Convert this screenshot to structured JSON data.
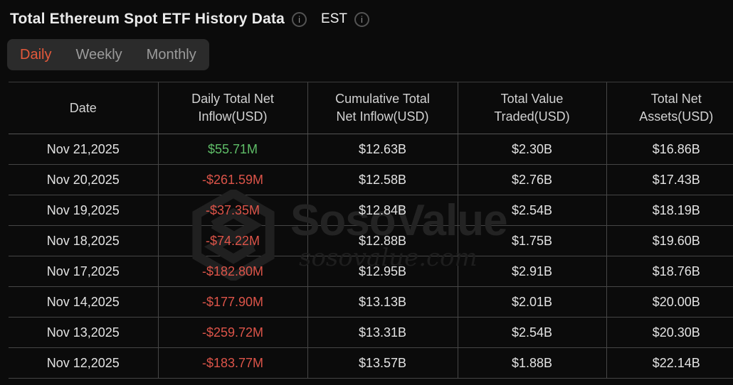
{
  "header": {
    "title": "Total Ethereum Spot ETF History Data",
    "timezone": "EST"
  },
  "tabs": [
    {
      "label": "Daily",
      "active": true
    },
    {
      "label": "Weekly",
      "active": false
    },
    {
      "label": "Monthly",
      "active": false
    }
  ],
  "table": {
    "columns": [
      "Date",
      "Daily Total Net Inflow(USD)",
      "Cumulative Total Net Inflow(USD)",
      "Total Value Traded(USD)",
      "Total Net Assets(USD)"
    ],
    "rows": [
      {
        "cells": [
          "Nov 21,2025",
          "$55.71M",
          "$12.63B",
          "$2.30B",
          "$16.86B"
        ],
        "inflow_sign": "positive"
      },
      {
        "cells": [
          "Nov 20,2025",
          "-$261.59M",
          "$12.58B",
          "$2.76B",
          "$17.43B"
        ],
        "inflow_sign": "negative"
      },
      {
        "cells": [
          "Nov 19,2025",
          "-$37.35M",
          "$12.84B",
          "$2.54B",
          "$18.19B"
        ],
        "inflow_sign": "negative"
      },
      {
        "cells": [
          "Nov 18,2025",
          "-$74.22M",
          "$12.88B",
          "$1.75B",
          "$19.60B"
        ],
        "inflow_sign": "negative"
      },
      {
        "cells": [
          "Nov 17,2025",
          "-$182.80M",
          "$12.95B",
          "$2.91B",
          "$18.76B"
        ],
        "inflow_sign": "negative"
      },
      {
        "cells": [
          "Nov 14,2025",
          "-$177.90M",
          "$13.13B",
          "$2.01B",
          "$20.00B"
        ],
        "inflow_sign": "negative"
      },
      {
        "cells": [
          "Nov 13,2025",
          "-$259.72M",
          "$13.31B",
          "$2.54B",
          "$20.30B"
        ],
        "inflow_sign": "negative"
      },
      {
        "cells": [
          "Nov 12,2025",
          "-$183.77M",
          "$13.57B",
          "$1.88B",
          "$22.14B"
        ],
        "inflow_sign": "negative"
      }
    ]
  },
  "watermark": {
    "brand": "SosoValue",
    "domain": "sosovalue.com"
  },
  "colors": {
    "positive": "#5fbe68",
    "negative": "#dc5449",
    "accent": "#e4593b"
  }
}
